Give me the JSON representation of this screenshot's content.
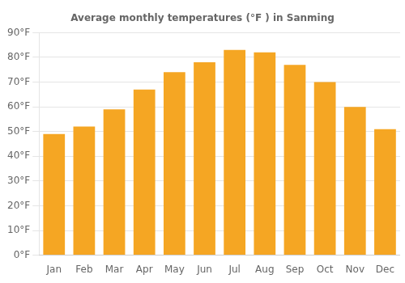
{
  "chart_data": {
    "type": "bar",
    "title": "Average monthly temperatures (°F ) in Sanming",
    "categories": [
      "Jan",
      "Feb",
      "Mar",
      "Apr",
      "May",
      "Jun",
      "Jul",
      "Aug",
      "Sep",
      "Oct",
      "Nov",
      "Dec"
    ],
    "values": [
      49,
      52,
      59,
      67,
      74,
      78,
      83,
      82,
      77,
      70,
      60,
      51
    ],
    "color": "#F5A623",
    "ylim": [
      0,
      90
    ],
    "yticks": [
      {
        "value": 0,
        "label": "0°F"
      },
      {
        "value": 10,
        "label": "10°F"
      },
      {
        "value": 20,
        "label": "20°F"
      },
      {
        "value": 30,
        "label": "30°F"
      },
      {
        "value": 40,
        "label": "40°F"
      },
      {
        "value": 50,
        "label": "50°F"
      },
      {
        "value": 60,
        "label": "60°F"
      },
      {
        "value": 70,
        "label": "70°F"
      },
      {
        "value": 80,
        "label": "80°F"
      },
      {
        "value": 90,
        "label": "90°F"
      }
    ],
    "grid": true
  }
}
